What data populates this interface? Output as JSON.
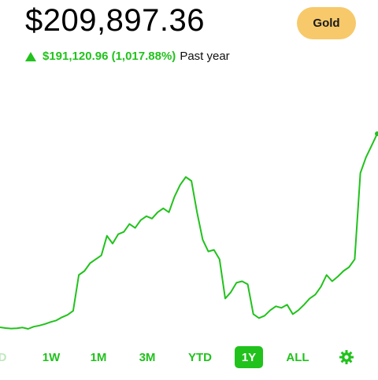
{
  "header": {
    "balance": "$209,897.36",
    "button": "Gold",
    "change": "$191,120.96 (1,017.88%)",
    "period": "Past year"
  },
  "chart_data": {
    "type": "line",
    "color": "#21c21c",
    "values": [
      18776,
      18000,
      17500,
      17802,
      18500,
      17200,
      19350,
      20500,
      22000,
      23994,
      25500,
      28638,
      31000,
      35000,
      70434,
      74304,
      82044,
      85914,
      89784,
      109134,
      101394,
      110682,
      113004,
      120744,
      116874,
      124614,
      128484,
      126162,
      132354,
      136224,
      132354,
      147834,
      159444,
      167184,
      163314,
      132354,
      105264,
      93654,
      95202,
      85914,
      47214,
      53406,
      62694,
      64242,
      61146,
      31734,
      27864,
      30186,
      35604,
      39474,
      37926,
      41022,
      31734,
      35604,
      41022,
      47214,
      51084,
      58824,
      70434,
      64242,
      68886,
      74304,
      78174,
      85914,
      171054,
      186534,
      198144,
      209897
    ]
  },
  "tabs": [
    "D",
    "1W",
    "1M",
    "3M",
    "YTD",
    "1Y",
    "ALL"
  ]
}
